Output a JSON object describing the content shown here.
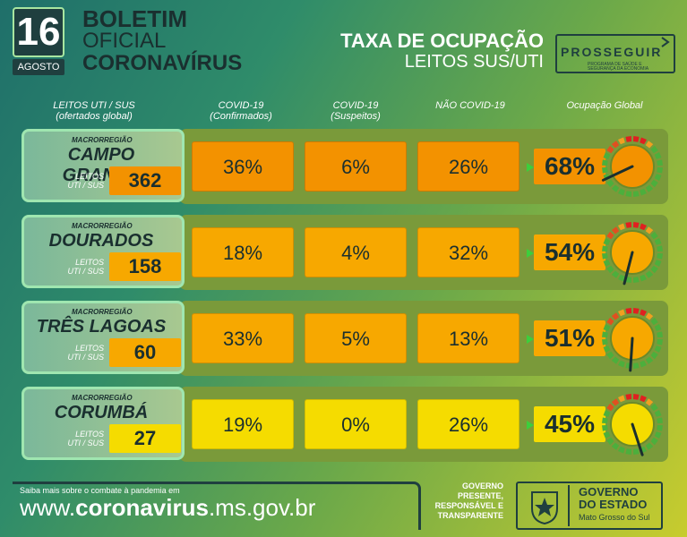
{
  "header": {
    "day": "16",
    "month": "AGOSTO",
    "title_line1": "BOLETIM",
    "title_line2": "OFICIAL",
    "title_line3": "CORONAVÍRUS",
    "taxa_line1": "TAXA DE OCUPAÇÃO",
    "taxa_line2": "LEITOS SUS/UTI",
    "logo_text": "PROSSEGUIR",
    "logo_subtext": "PROGRAMA DE SAÚDE E SEGURANÇA DA ECONOMIA"
  },
  "columns": {
    "c0_line1": "LEITOS UTI / SUS",
    "c0_line2": "(ofertados global)",
    "c1_line1": "COVID-19",
    "c1_line2": "(Confirmados)",
    "c2_line1": "COVID-19",
    "c2_line2": "(Suspeitos)",
    "c3_line1": "NÃO COVID-19",
    "c4_line1": "Ocupação Global"
  },
  "macro_label": "MACRORREGIÃO",
  "leitos_label_1": "LEITOS",
  "leitos_label_2": "UTI / SUS",
  "rows": [
    {
      "region": "CAMPO GRANDE",
      "leitos": "362",
      "confirmados": "36%",
      "suspeitos": "6%",
      "nao_covid": "26%",
      "global": "68%",
      "global_value": 68,
      "cell_color": "#f39200",
      "band_color": "#7a9a3a",
      "leitos_color": "#f39200",
      "pct_color": "#f39200"
    },
    {
      "region": "DOURADOS",
      "leitos": "158",
      "confirmados": "18%",
      "suspeitos": "4%",
      "nao_covid": "32%",
      "global": "54%",
      "global_value": 54,
      "cell_color": "#f7a800",
      "band_color": "#7a9a3a",
      "leitos_color": "#f7a800",
      "pct_color": "#f7a800"
    },
    {
      "region": "TRÊS LAGOAS",
      "leitos": "60",
      "confirmados": "33%",
      "suspeitos": "5%",
      "nao_covid": "13%",
      "global": "51%",
      "global_value": 51,
      "cell_color": "#f7a800",
      "band_color": "#7a9a3a",
      "leitos_color": "#f7a800",
      "pct_color": "#f7a800"
    },
    {
      "region": "CORUMBÁ",
      "leitos": "27",
      "confirmados": "19%",
      "suspeitos": "0%",
      "nao_covid": "26%",
      "global": "45%",
      "global_value": 45,
      "cell_color": "#f5dc00",
      "band_color": "#7a9a3a",
      "leitos_color": "#f5dc00",
      "pct_color": "#f5dc00"
    }
  ],
  "footer": {
    "saiba": "Saiba mais sobre o combate à pandemia em",
    "url_pre": "www.",
    "url_bold": "coronavirus",
    "url_post": ".ms.gov.br",
    "slogan_l1": "GOVERNO",
    "slogan_l2": "PRESENTE,",
    "slogan_l3": "RESPONSÁVEL E",
    "slogan_l4": "TRANSPARENTE",
    "gov_t1": "GOVERNO",
    "gov_t2": "DO ESTADO",
    "gov_t3": "Mato Grosso do Sul"
  },
  "colors": {
    "dark": "#1f3f3f",
    "green_accent": "#3ccf3c"
  }
}
